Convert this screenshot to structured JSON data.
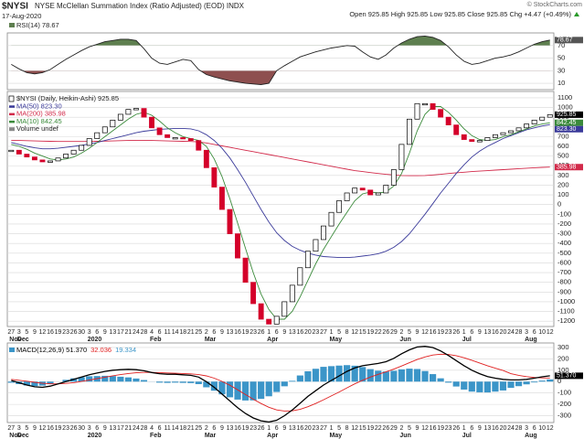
{
  "header": {
    "symbol": "$NYSI",
    "name": "NYSE McClellan Summation Index (Ratio Adjusted) (EOD) INDX",
    "date": "17-Aug-2020",
    "quote": "Open 925.85 High 925.85 Low 925.85 Close 925.85 Chg +4.47 (+0.49%)",
    "credit": "© StockCharts.com"
  },
  "chart_data": [
    {
      "type": "line",
      "legend": "RSI(14) 78.67",
      "ylim": [
        0,
        90
      ],
      "yticks": [
        10,
        30,
        50,
        70
      ],
      "fill_above_color": "#5e7f4f",
      "fill_below_color": "#8e4f4f",
      "series": [
        {
          "name": "RSI(14)",
          "color": "#222222",
          "last": "78.67",
          "values": [
            40,
            33,
            27,
            25,
            27,
            32,
            40,
            48,
            55,
            62,
            68,
            72,
            76,
            78,
            80,
            80,
            78,
            65,
            50,
            42,
            40,
            44,
            48,
            46,
            32,
            24,
            20,
            17,
            14,
            12,
            10,
            9,
            8,
            10,
            30,
            38,
            45,
            52,
            56,
            60,
            63,
            66,
            68,
            70,
            69,
            60,
            52,
            48,
            55,
            66,
            74,
            80,
            84,
            85,
            83,
            78,
            68,
            55,
            45,
            40,
            42,
            46,
            50,
            52,
            55,
            60,
            66,
            72,
            76,
            78.67
          ]
        }
      ]
    },
    {
      "type": "candlestick",
      "categories": [
        "27",
        "3",
        "5",
        "9",
        "12",
        "16",
        "19",
        "23",
        "26",
        "30",
        "3",
        "6",
        "9",
        "13",
        "17",
        "21",
        "24",
        "28",
        "4",
        "6",
        "11",
        "14",
        "18",
        "21",
        "25",
        "2",
        "6",
        "9",
        "13",
        "16",
        "19",
        "23",
        "26",
        "1",
        "6",
        "9",
        "13",
        "16",
        "20",
        "23",
        "27",
        "1",
        "5",
        "8",
        "12",
        "15",
        "19",
        "22",
        "26",
        "29",
        "2",
        "5",
        "9",
        "12",
        "16",
        "19",
        "23",
        "26",
        "1",
        "6",
        "9",
        "13",
        "16",
        "20",
        "24",
        "28",
        "3",
        "6",
        "10",
        "12"
      ],
      "months": [
        "Nov",
        "Dec",
        null,
        null,
        null,
        null,
        null,
        null,
        null,
        null,
        "2020",
        null,
        null,
        null,
        null,
        null,
        null,
        null,
        "Feb",
        null,
        null,
        null,
        null,
        null,
        null,
        "Mar",
        null,
        null,
        null,
        null,
        null,
        null,
        null,
        "Apr",
        null,
        null,
        null,
        null,
        null,
        null,
        null,
        "May",
        null,
        null,
        null,
        null,
        null,
        null,
        null,
        null,
        "Jun",
        null,
        null,
        null,
        null,
        null,
        null,
        null,
        "Jul",
        null,
        null,
        null,
        null,
        null,
        null,
        null,
        "Aug",
        null,
        null,
        null
      ],
      "ylim": [
        -1255,
        1165
      ],
      "yticks": [
        1100,
        1000,
        900,
        800,
        700,
        600,
        500,
        400,
        300,
        200,
        100,
        0,
        -100,
        -200,
        -300,
        -400,
        -500,
        -600,
        -700,
        -800,
        -900,
        -1000,
        -1100,
        -1200
      ],
      "legend_extra": "Volume undef",
      "series": [
        {
          "name": "$NYSI (Daily, Heikin-Ashi) 925.85",
          "color": "#000000",
          "up_color": "#ffffff",
          "down_color": "#d4002a",
          "last": "925.85",
          "values": [
            560,
            520,
            490,
            460,
            440,
            450,
            480,
            520,
            560,
            610,
            680,
            740,
            800,
            870,
            930,
            980,
            990,
            900,
            790,
            720,
            690,
            690,
            680,
            660,
            560,
            380,
            180,
            -50,
            -300,
            -550,
            -800,
            -1020,
            -1180,
            -1230,
            -1150,
            -1000,
            -830,
            -650,
            -480,
            -360,
            -220,
            -80,
            40,
            120,
            170,
            150,
            100,
            120,
            200,
            360,
            620,
            880,
            1040,
            1040,
            980,
            900,
            820,
            720,
            670,
            650,
            660,
            690,
            720,
            740,
            760,
            790,
            830,
            870,
            900,
            925.85
          ]
        },
        {
          "name": "MA(50) 823.30",
          "color": "#3a3a9a",
          "last": "823.30",
          "values": [
            640,
            620,
            600,
            585,
            575,
            575,
            580,
            590,
            600,
            610,
            625,
            640,
            660,
            680,
            700,
            720,
            740,
            755,
            765,
            775,
            780,
            785,
            785,
            780,
            760,
            720,
            660,
            580,
            480,
            360,
            230,
            90,
            -50,
            -180,
            -290,
            -370,
            -430,
            -470,
            -500,
            -520,
            -535,
            -540,
            -545,
            -545,
            -540,
            -530,
            -520,
            -505,
            -480,
            -440,
            -380,
            -300,
            -200,
            -100,
            10,
            120,
            220,
            320,
            410,
            490,
            550,
            600,
            640,
            680,
            710,
            740,
            770,
            790,
            810,
            823.3
          ]
        },
        {
          "name": "MA(200) 385.98",
          "color": "#d22a4a",
          "last": "385.98",
          "values": [
            660,
            660,
            658,
            656,
            654,
            652,
            650,
            650,
            650,
            650,
            650,
            652,
            654,
            656,
            658,
            660,
            662,
            662,
            660,
            658,
            656,
            654,
            652,
            650,
            645,
            635,
            620,
            605,
            590,
            575,
            560,
            545,
            530,
            515,
            500,
            485,
            470,
            455,
            440,
            425,
            410,
            395,
            380,
            365,
            350,
            340,
            330,
            320,
            312,
            305,
            300,
            298,
            298,
            300,
            305,
            312,
            320,
            328,
            334,
            340,
            345,
            350,
            355,
            360,
            365,
            370,
            375,
            380,
            383,
            385.98
          ]
        },
        {
          "name": "MA(10) 842.45",
          "color": "#3a8a3a",
          "last": "842.45",
          "values": [
            620,
            600,
            570,
            530,
            500,
            470,
            460,
            470,
            490,
            530,
            580,
            640,
            700,
            760,
            820,
            880,
            930,
            950,
            920,
            860,
            790,
            740,
            700,
            680,
            660,
            600,
            470,
            290,
            60,
            -190,
            -450,
            -700,
            -920,
            -1080,
            -1180,
            -1180,
            -1100,
            -950,
            -780,
            -610,
            -460,
            -330,
            -200,
            -80,
            40,
            110,
            130,
            120,
            130,
            190,
            320,
            530,
            760,
            930,
            1010,
            1010,
            950,
            870,
            780,
            710,
            670,
            660,
            670,
            700,
            720,
            750,
            780,
            810,
            830,
            842.45
          ]
        }
      ]
    },
    {
      "type": "line",
      "ylim": [
        -360,
        340
      ],
      "yticks": [
        300,
        200,
        100,
        0,
        -100,
        -200,
        -300
      ],
      "series": [
        {
          "name": "MACD(12,26,9) 51.370",
          "color": "#000000",
          "last": "51.370",
          "values": [
            10,
            -10,
            -30,
            -45,
            -50,
            -40,
            -20,
            0,
            20,
            40,
            60,
            75,
            90,
            100,
            105,
            108,
            105,
            95,
            80,
            70,
            65,
            65,
            60,
            55,
            40,
            0,
            -50,
            -110,
            -170,
            -230,
            -280,
            -320,
            -345,
            -355,
            -340,
            -300,
            -250,
            -190,
            -130,
            -80,
            -30,
            10,
            50,
            90,
            120,
            140,
            150,
            160,
            175,
            205,
            245,
            280,
            305,
            310,
            300,
            270,
            230,
            185,
            140,
            100,
            70,
            45,
            30,
            20,
            15,
            15,
            20,
            30,
            42,
            51.37
          ]
        },
        {
          "name": "32.036",
          "color": "#e02020",
          "values": [
            20,
            12,
            4,
            -6,
            -15,
            -20,
            -20,
            -16,
            -9,
            1,
            13,
            26,
            39,
            51,
            62,
            71,
            78,
            81,
            81,
            79,
            76,
            74,
            71,
            68,
            62,
            50,
            30,
            2,
            -32,
            -72,
            -114,
            -155,
            -193,
            -226,
            -249,
            -259,
            -257,
            -244,
            -221,
            -193,
            -160,
            -126,
            -91,
            -55,
            -20,
            12,
            40,
            64,
            86,
            110,
            137,
            166,
            194,
            217,
            234,
            241,
            239,
            228,
            210,
            188,
            164,
            140,
            118,
            98,
            70,
            55,
            44,
            37,
            33,
            32.036
          ]
        },
        {
          "name": "19.334",
          "color": "#3b95c8",
          "type": "bar",
          "values": [
            -10,
            -22,
            -34,
            -39,
            -35,
            -20,
            0,
            16,
            29,
            39,
            47,
            49,
            51,
            49,
            43,
            37,
            27,
            14,
            -1,
            -9,
            -11,
            -9,
            -11,
            -13,
            -22,
            -50,
            -80,
            -112,
            -138,
            -158,
            -166,
            -165,
            -152,
            -129,
            -91,
            -41,
            7,
            54,
            91,
            113,
            130,
            136,
            141,
            145,
            140,
            128,
            110,
            96,
            89,
            95,
            108,
            114,
            111,
            93,
            66,
            29,
            -9,
            -43,
            -70,
            -88,
            -94,
            -95,
            -88,
            -78,
            -55,
            -40,
            -24,
            -7,
            9,
            19.334
          ]
        }
      ]
    }
  ]
}
